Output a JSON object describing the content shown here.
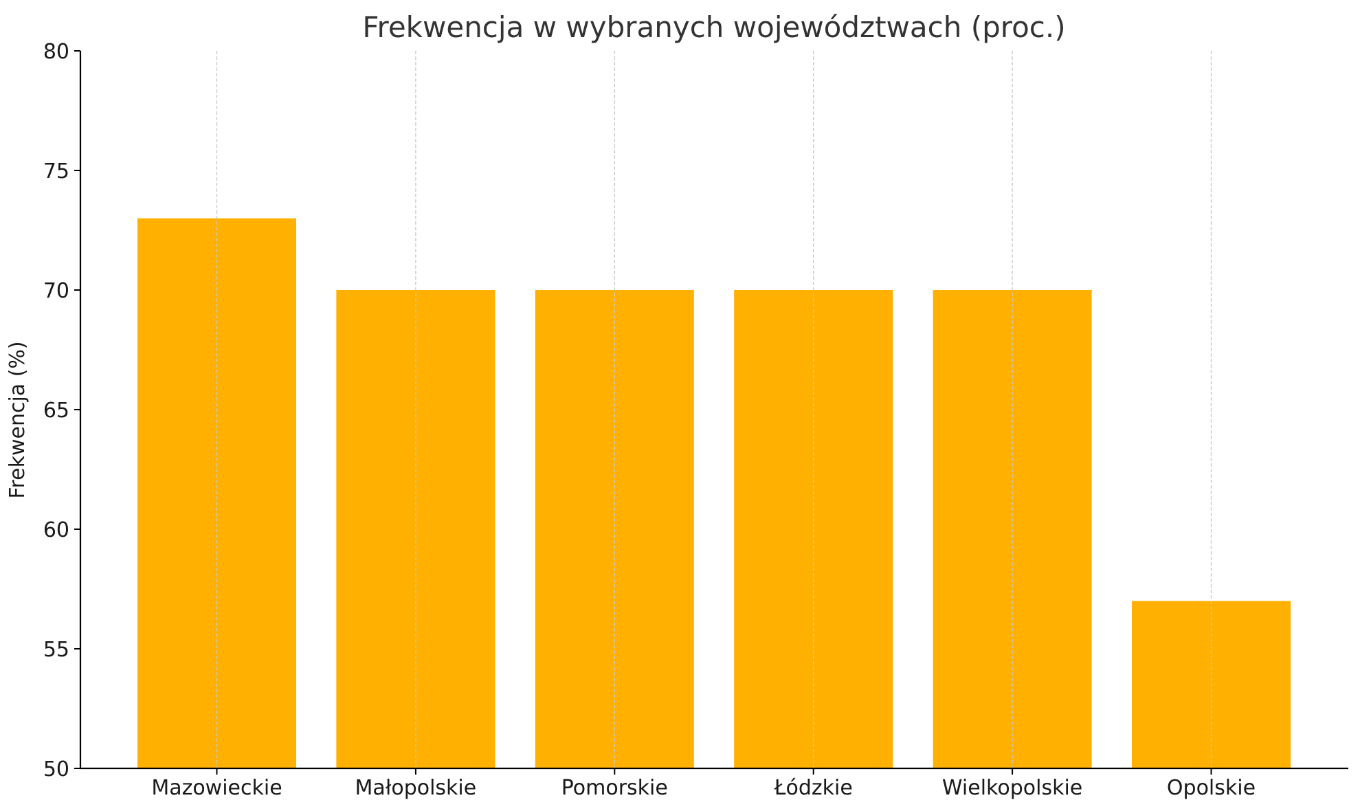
{
  "chart_data": {
    "type": "bar",
    "title": "Frekwencja w wybranych województwach (proc.)",
    "xlabel": "",
    "ylabel": "Frekwencja (%)",
    "categories": [
      "Mazowieckie",
      "Małopolskie",
      "Pomorskie",
      "Łódzkie",
      "Wielkopolskie",
      "Opolskie"
    ],
    "values": [
      73,
      70,
      70,
      70,
      70,
      57
    ],
    "ylim": [
      50,
      80
    ],
    "yticks": [
      "50",
      "55",
      "60",
      "65",
      "70",
      "75",
      "80"
    ],
    "grid": "vertical dashed",
    "bar_color": "#ffb000",
    "grid_color": "#c8c8c8"
  }
}
